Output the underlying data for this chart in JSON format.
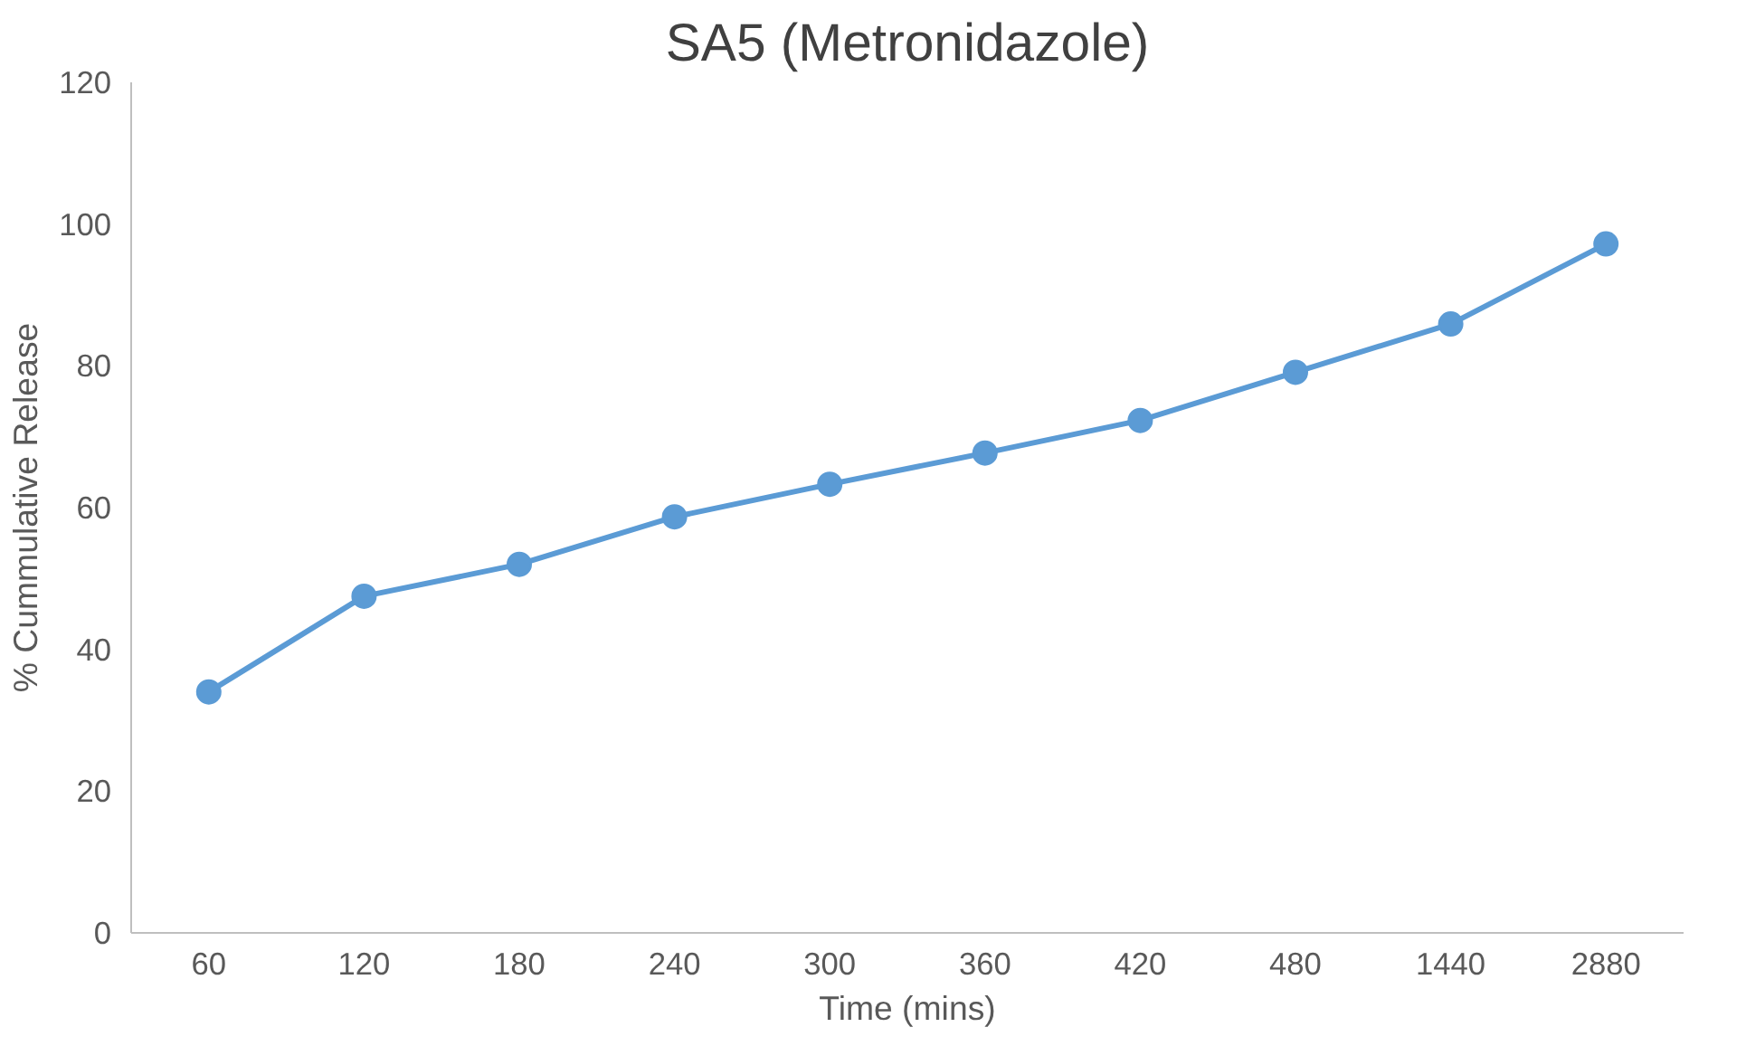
{
  "chart_data": {
    "type": "line",
    "title": "SA5 (Metronidazole)",
    "xlabel": "Time (mins)",
    "ylabel": "% Cummulative Release",
    "categories": [
      "60",
      "120",
      "180",
      "240",
      "300",
      "360",
      "420",
      "480",
      "1440",
      "2880"
    ],
    "series": [
      {
        "color": "#5b9bd5",
        "values": [
          34,
          47.5,
          52,
          58.7,
          63.3,
          67.7,
          72.3,
          79.1,
          85.9,
          97.2
        ]
      }
    ],
    "ylim": [
      0,
      120
    ],
    "yticks": [
      0,
      20,
      40,
      60,
      80,
      100,
      120
    ],
    "grid": false,
    "marker": "circle",
    "line_style": "solid"
  }
}
